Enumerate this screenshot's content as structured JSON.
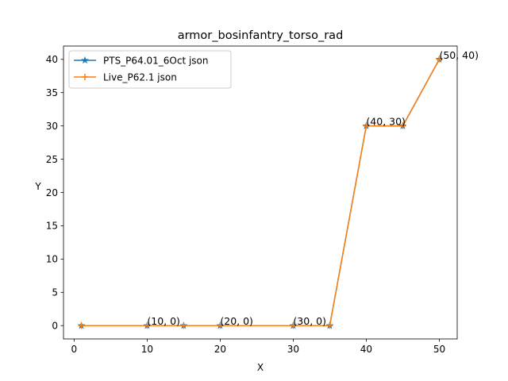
{
  "chart_data": {
    "type": "line",
    "title": "armor_bosinfantry_torso_rad",
    "xlabel": "X",
    "ylabel": "Y",
    "xlim": [
      -1.45,
      52.45
    ],
    "ylim": [
      -2,
      42
    ],
    "xticks": [
      0,
      10,
      20,
      30,
      40,
      50
    ],
    "yticks": [
      0,
      5,
      10,
      15,
      20,
      25,
      30,
      35,
      40
    ],
    "grid": false,
    "legend_position": "upper-left",
    "series": [
      {
        "name": "PTS_P64.01_6Oct json",
        "color": "#1f77b4",
        "marker": "star",
        "x": [
          1,
          10,
          15,
          20,
          30,
          35,
          40,
          45,
          50
        ],
        "y": [
          0,
          0,
          0,
          0,
          0,
          0,
          30,
          30,
          40
        ]
      },
      {
        "name": "Live_P62.1 json",
        "color": "#ff7f0e",
        "marker": "plus",
        "x": [
          1,
          10,
          15,
          20,
          30,
          35,
          40,
          45,
          50
        ],
        "y": [
          0,
          0,
          0,
          0,
          0,
          0,
          30,
          30,
          40
        ]
      }
    ],
    "annotations": [
      {
        "text": "(10, 0)",
        "x": 10,
        "y": 0
      },
      {
        "text": "(20, 0)",
        "x": 20,
        "y": 0
      },
      {
        "text": "(30, 0)",
        "x": 30,
        "y": 0
      },
      {
        "text": "(40, 30)",
        "x": 40,
        "y": 30
      },
      {
        "text": "(50, 40)",
        "x": 50,
        "y": 40
      }
    ]
  }
}
